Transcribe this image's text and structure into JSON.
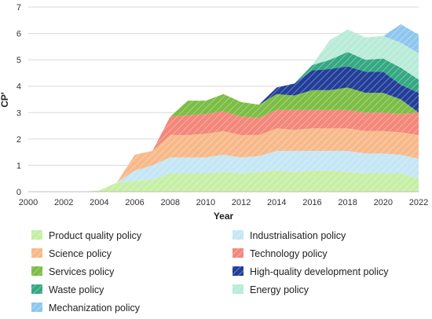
{
  "chart_data": {
    "type": "area",
    "stacked": true,
    "title": "",
    "xlabel": "Year",
    "ylabel": "CPʹ",
    "xlim": [
      2000,
      2022
    ],
    "ylim": [
      0,
      7
    ],
    "x_ticks": [
      "2000",
      "2002",
      "2004",
      "2006",
      "2008",
      "2010",
      "2012",
      "2014",
      "2016",
      "2018",
      "2020",
      "2022"
    ],
    "y_ticks": [
      "0",
      "1",
      "2",
      "3",
      "4",
      "5",
      "6",
      "7"
    ],
    "grid": "horizontal",
    "legend_position": "bottom",
    "x": [
      2000,
      2001,
      2002,
      2003,
      2004,
      2005,
      2006,
      2007,
      2008,
      2009,
      2010,
      2011,
      2012,
      2013,
      2014,
      2015,
      2016,
      2017,
      2018,
      2019,
      2020,
      2021,
      2022
    ],
    "series": [
      {
        "name": "Product quality policy",
        "color": "#c6efa5",
        "values": [
          0,
          0,
          0,
          0,
          0.05,
          0.35,
          0.4,
          0.45,
          0.7,
          0.7,
          0.7,
          0.75,
          0.7,
          0.75,
          0.8,
          0.75,
          0.8,
          0.8,
          0.75,
          0.7,
          0.7,
          0.7,
          0.5
        ]
      },
      {
        "name": "Industrialisation policy",
        "color": "#c5e6f5",
        "values": [
          0,
          0,
          0,
          0,
          0,
          0,
          0.4,
          0.55,
          0.6,
          0.6,
          0.6,
          0.65,
          0.6,
          0.6,
          0.75,
          0.8,
          0.75,
          0.75,
          0.8,
          0.75,
          0.75,
          0.7,
          0.75
        ]
      },
      {
        "name": "Science policy",
        "color": "#f7b98a",
        "values": [
          0,
          0,
          0,
          0,
          0,
          0,
          0.6,
          0.55,
          0.85,
          0.85,
          0.9,
          0.9,
          0.85,
          0.8,
          0.85,
          0.8,
          0.85,
          0.85,
          0.85,
          0.85,
          0.85,
          0.85,
          0.9
        ]
      },
      {
        "name": "Technology policy",
        "color": "#f3877a",
        "values": [
          0,
          0,
          0,
          0,
          0,
          0,
          0,
          0,
          0.7,
          0.75,
          0.75,
          0.75,
          0.7,
          0.65,
          0.7,
          0.75,
          0.7,
          0.7,
          0.7,
          0.7,
          0.7,
          0.7,
          0.85
        ]
      },
      {
        "name": "Services policy",
        "color": "#7cbd45",
        "values": [
          0,
          0,
          0,
          0,
          0,
          0,
          0,
          0,
          0,
          0.55,
          0.5,
          0.65,
          0.55,
          0.5,
          0.6,
          0.55,
          0.75,
          0.75,
          0.85,
          0.75,
          0.75,
          0.55,
          0
        ]
      },
      {
        "name": "High-quality development policy",
        "color": "#233e99",
        "values": [
          0,
          0,
          0,
          0,
          0,
          0,
          0,
          0,
          0,
          0,
          0,
          0,
          0,
          0,
          0.25,
          0.45,
          0.75,
          0.8,
          0.8,
          0.8,
          0.8,
          0.55,
          0.75
        ]
      },
      {
        "name": "Waste policy",
        "color": "#34a882",
        "values": [
          0,
          0,
          0,
          0,
          0,
          0,
          0,
          0,
          0,
          0,
          0,
          0,
          0,
          0,
          0,
          0,
          0.2,
          0.35,
          0.55,
          0.45,
          0.5,
          0.65,
          0.5
        ]
      },
      {
        "name": "Energy policy",
        "color": "#b8ebd8",
        "values": [
          0,
          0,
          0,
          0,
          0,
          0,
          0,
          0,
          0,
          0,
          0,
          0,
          0,
          0,
          0,
          0,
          0,
          0.75,
          0.85,
          0.85,
          0.85,
          0.95,
          1.0
        ]
      },
      {
        "name": "Mechanization policy",
        "color": "#8ec6ef",
        "values": [
          0,
          0,
          0,
          0,
          0,
          0,
          0,
          0,
          0,
          0,
          0,
          0,
          0,
          0,
          0,
          0,
          0,
          0,
          0,
          0,
          0,
          0.7,
          0.7
        ]
      }
    ]
  }
}
